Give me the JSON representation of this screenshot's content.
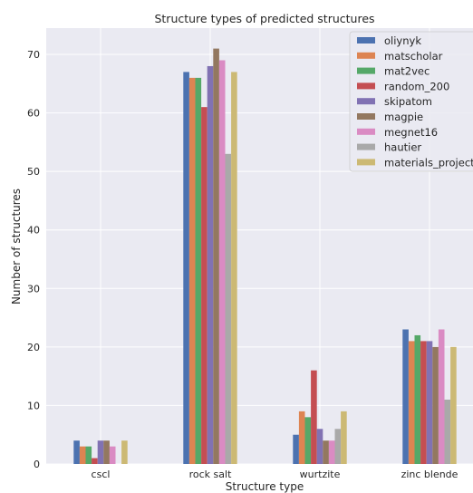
{
  "chart_data": {
    "type": "bar",
    "title": "Structure types of predicted structures",
    "xlabel": "Structure type",
    "ylabel": "Number of structures",
    "categories": [
      "cscl",
      "rock salt",
      "wurtzite",
      "zinc blende"
    ],
    "ylim": [
      0,
      74.5
    ],
    "yticks": [
      0,
      10,
      20,
      30,
      40,
      50,
      60,
      70
    ],
    "grid": true,
    "legend_position": "top-right",
    "background": "#eaeaf2",
    "series": [
      {
        "name": "oliynyk",
        "color": "#4c72b0",
        "values": [
          4,
          67,
          5,
          23
        ]
      },
      {
        "name": "matscholar",
        "color": "#dd8452",
        "values": [
          3,
          66,
          9,
          21
        ]
      },
      {
        "name": "mat2vec",
        "color": "#55a868",
        "values": [
          3,
          66,
          8,
          22
        ]
      },
      {
        "name": "random_200",
        "color": "#c44e52",
        "values": [
          1,
          61,
          16,
          21
        ]
      },
      {
        "name": "skipatom",
        "color": "#8172b3",
        "values": [
          4,
          68,
          6,
          21
        ]
      },
      {
        "name": "magpie",
        "color": "#937860",
        "values": [
          4,
          71,
          4,
          20
        ]
      },
      {
        "name": "megnet16",
        "color": "#da8bc3",
        "values": [
          3,
          69,
          4,
          23
        ]
      },
      {
        "name": "hautier",
        "color": "#a9a9a9",
        "values": [
          0,
          53,
          6,
          11
        ]
      },
      {
        "name": "materials_project",
        "color": "#ccb974",
        "values": [
          4,
          67,
          9,
          20
        ]
      }
    ]
  }
}
